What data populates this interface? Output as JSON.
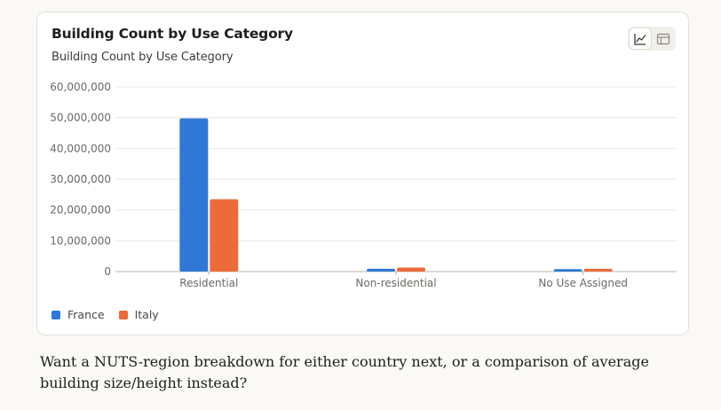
{
  "card": {
    "title": "Building Count by Use Category",
    "subtitle": "Building Count by Use Category"
  },
  "toggle": {
    "items": [
      {
        "icon": "line-chart-icon",
        "active": true
      },
      {
        "icon": "table-icon",
        "active": false
      }
    ]
  },
  "chart_data": {
    "type": "bar",
    "categories": [
      "Residential",
      "Non-residential",
      "No Use Assigned"
    ],
    "series": [
      {
        "name": "France",
        "values": [
          49800000,
          900000,
          800000
        ],
        "color": "#2e78d7"
      },
      {
        "name": "Italy",
        "values": [
          23500000,
          1300000,
          900000
        ],
        "color": "#ec6b38"
      }
    ],
    "yticks": [
      "0",
      "10,000,000",
      "20,000,000",
      "30,000,000",
      "40,000,000",
      "50,000,000",
      "60,000,000"
    ],
    "ylim": [
      0,
      60000000
    ],
    "grid": true,
    "legend_position": "bottom-left"
  },
  "footer": {
    "text": "Want a NUTS-region breakdown for either country next, or a comparison of average building size/height instead?"
  }
}
